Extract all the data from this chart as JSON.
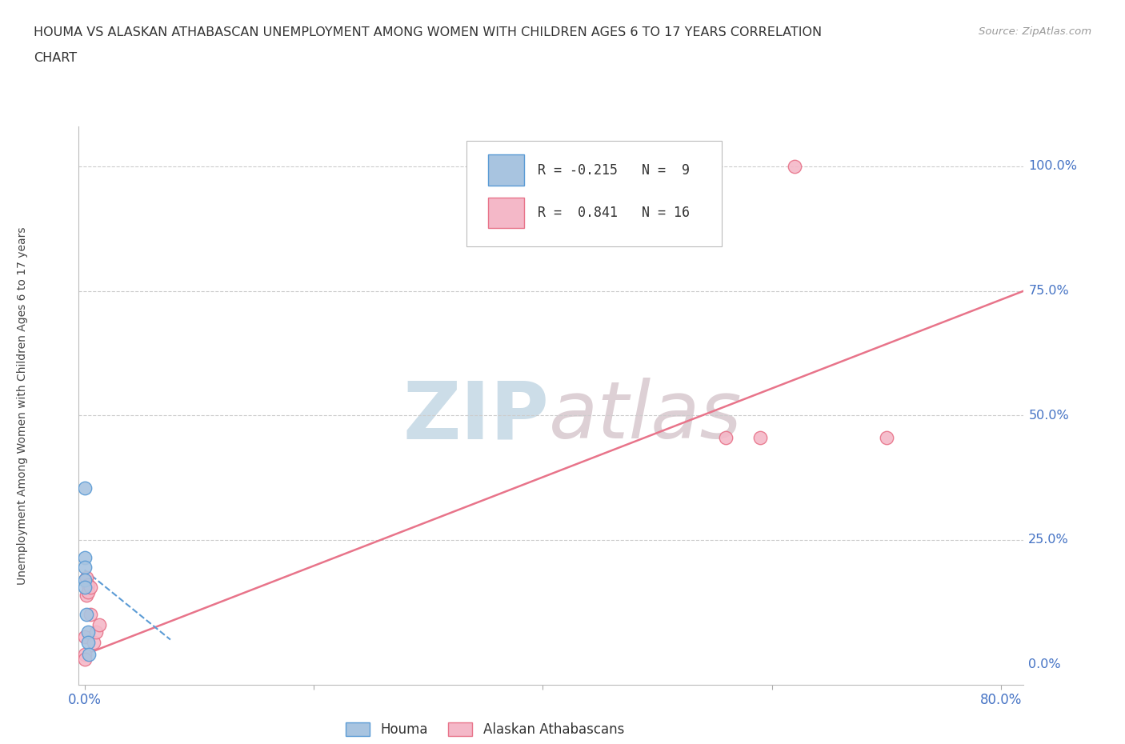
{
  "title_line1": "HOUMA VS ALASKAN ATHABASCAN UNEMPLOYMENT AMONG WOMEN WITH CHILDREN AGES 6 TO 17 YEARS CORRELATION",
  "title_line2": "CHART",
  "source": "Source: ZipAtlas.com",
  "ylabel": "Unemployment Among Women with Children Ages 6 to 17 years",
  "xlim": [
    -0.005,
    0.82
  ],
  "ylim": [
    -0.04,
    1.08
  ],
  "xtick_positions": [
    0.0,
    0.2,
    0.4,
    0.6,
    0.8
  ],
  "xtick_labels": [
    "0.0%",
    "",
    "",
    "",
    "80.0%"
  ],
  "ytick_vals_right": [
    0.0,
    0.25,
    0.5,
    0.75,
    1.0
  ],
  "ytick_labels_right": [
    "0.0%",
    "25.0%",
    "50.0%",
    "75.0%",
    "100.0%"
  ],
  "gridline_vals": [
    0.25,
    0.5,
    0.75,
    1.0
  ],
  "legend_r1": "R = -0.215",
  "legend_n1": "N =  9",
  "legend_r2": "R =  0.841",
  "legend_n2": "N = 16",
  "houma_color": "#a8c4e0",
  "athabascan_color": "#f4b8c8",
  "houma_edge_color": "#5b9bd5",
  "athabascan_edge_color": "#e8748a",
  "houma_x": [
    0.0,
    0.0,
    0.0,
    0.0,
    0.0,
    0.002,
    0.003,
    0.003,
    0.004
  ],
  "houma_y": [
    0.355,
    0.215,
    0.195,
    0.17,
    0.155,
    0.1,
    0.065,
    0.045,
    0.02
  ],
  "athabascan_x": [
    0.0,
    0.0,
    0.0,
    0.002,
    0.002,
    0.003,
    0.003,
    0.005,
    0.005,
    0.008,
    0.01,
    0.013,
    0.56,
    0.59,
    0.62,
    0.7
  ],
  "athabascan_y": [
    0.055,
    0.02,
    0.01,
    0.175,
    0.14,
    0.16,
    0.145,
    0.155,
    0.1,
    0.045,
    0.065,
    0.08,
    0.455,
    0.455,
    1.0,
    0.455
  ],
  "houma_trend_x": [
    0.0,
    0.075
  ],
  "houma_trend_y": [
    0.19,
    0.05
  ],
  "athabascan_trend_x": [
    0.0,
    0.82
  ],
  "athabascan_trend_y": [
    0.02,
    0.75
  ],
  "marker_size": 140,
  "background_color": "#ffffff",
  "text_color_blue": "#4472c4",
  "grid_color": "#cccccc",
  "watermark_zip_color": "#ccdde8",
  "watermark_atlas_color": "#ddd0d5",
  "axis_label_fontsize": 10,
  "title_fontsize": 11.5
}
